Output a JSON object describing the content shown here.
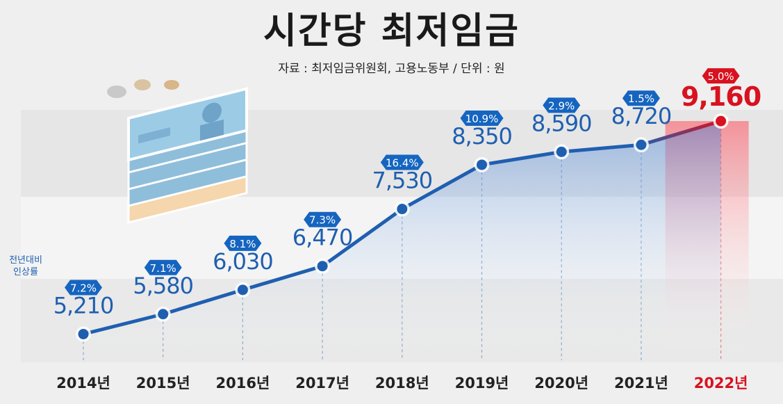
{
  "title": "시간당 최저임금",
  "source": "자료 : 최저임금위원회, 고용노동부 / 단위 : 원",
  "side_note_line1": "전년대비",
  "side_note_line2": "인상률",
  "colors": {
    "line": "#1f5fb0",
    "highlight": "#d8121f",
    "badge": "#1565c0",
    "value_text": "#1f5fb0",
    "year_text": "#222222"
  },
  "chart_data": {
    "type": "line",
    "title": "시간당 최저임금",
    "xlabel": "",
    "ylabel": "",
    "unit": "원",
    "categories": [
      "2014년",
      "2015년",
      "2016년",
      "2017년",
      "2018년",
      "2019년",
      "2020년",
      "2021년",
      "2022년"
    ],
    "values": [
      5210,
      5580,
      6030,
      6470,
      7530,
      8350,
      8590,
      8720,
      9160
    ],
    "value_labels": [
      "5,210",
      "5,580",
      "6,030",
      "6,470",
      "7,530",
      "8,350",
      "8,590",
      "8,720",
      "9,160"
    ],
    "growth_rates": [
      "7.2%",
      "7.1%",
      "8.1%",
      "7.3%",
      "16.4%",
      "10.9%",
      "2.9%",
      "1.5%",
      "5.0%"
    ],
    "highlight_index": 8,
    "ylim": [
      4700,
      9600
    ],
    "grid": false
  }
}
